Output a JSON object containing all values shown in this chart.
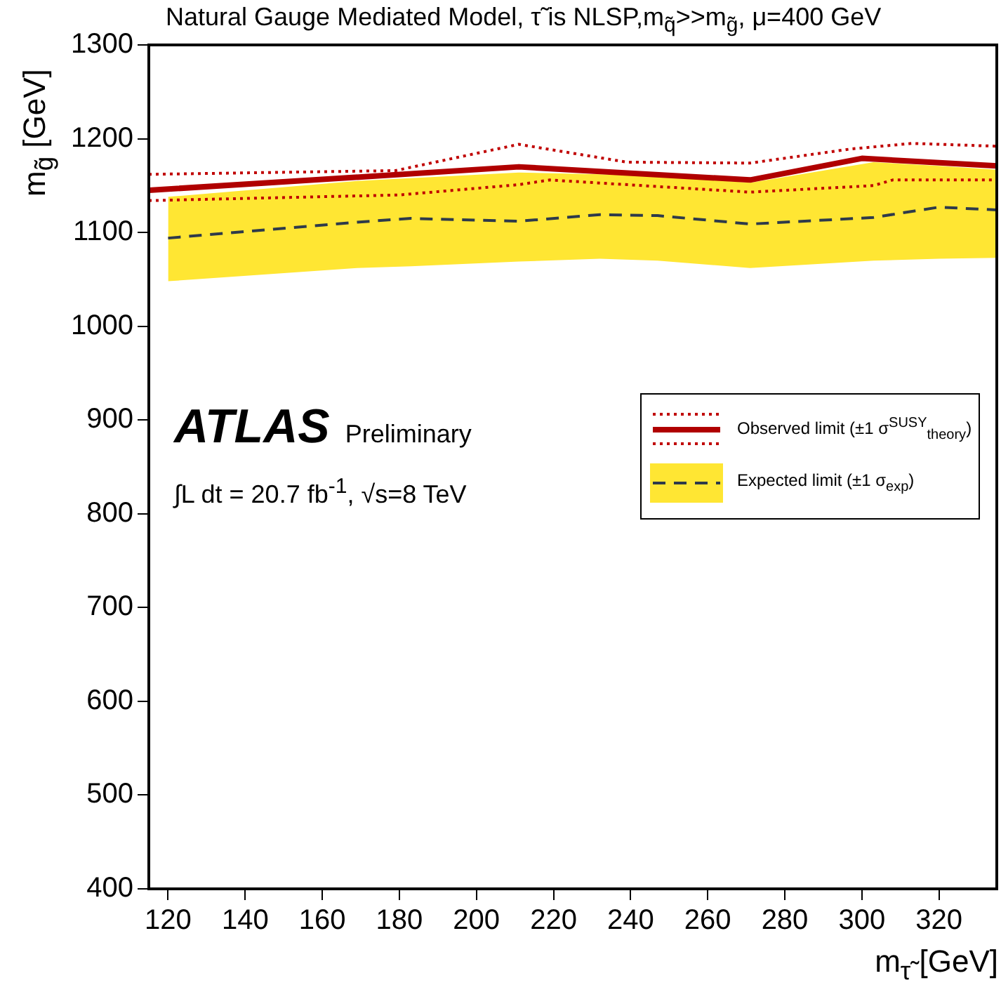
{
  "chart_data": {
    "type": "line",
    "title": "Natural Gauge Mediated Model, τ̃ is NLSP,m$_{q̃}$>>m$_{g̃}$,  μ=400 GeV",
    "xlabel": "m$_{τ̃}$ [GeV]",
    "ylabel": "m$_{g̃}$ [GeV]",
    "annotations": [
      "ATLAS Preliminary",
      "∫L dt = 20.7 fb$^{-1}$, √s=8 TeV"
    ],
    "xlim": [
      115,
      335
    ],
    "xticks": [
      120,
      140,
      160,
      180,
      200,
      220,
      240,
      260,
      280,
      300,
      320
    ],
    "ylim": [
      400,
      1300
    ],
    "yticks": [
      400,
      500,
      600,
      700,
      800,
      900,
      1000,
      1100,
      1200,
      1300
    ],
    "grid": false,
    "legend": "right",
    "marker": "none",
    "series": [
      {
        "name": "Expected limit (±1 σ$_{exp}$)",
        "color": "#2e3a4a",
        "line_style": "dashed",
        "x": [
          120,
          169,
          183,
          211,
          232,
          247,
          271,
          303,
          320,
          335
        ],
        "values": [
          1094,
          1111,
          1115,
          1112,
          1119,
          1118,
          1109,
          1116,
          1127,
          1124
        ],
        "lower": [
          1048,
          1062,
          1064,
          1069,
          1072,
          1070,
          1062,
          1070,
          1072,
          1073
        ],
        "upper": [
          1138,
          1155,
          1158,
          1164,
          1162,
          1160,
          1153,
          1175,
          1171,
          1167
        ]
      },
      {
        "name": "Observed limit (±1 σ$^{SUSY}$$_{theory}$)",
        "color": "#b00000",
        "line_style": "solid",
        "x": [
          115,
          173,
          211,
          271,
          300,
          335
        ],
        "values": [
          1145,
          1160,
          1170,
          1156,
          1179,
          1171
        ]
      },
      {
        "color": "#c00000",
        "line_style": "dotted",
        "x": [
          115,
          179,
          211,
          239,
          271,
          297,
          313,
          335
        ],
        "values": [
          1162,
          1166,
          1194,
          1175,
          1174,
          1189,
          1195,
          1192
        ]
      },
      {
        "color": "#c00000",
        "line_style": "dotted",
        "x": [
          115,
          180,
          211,
          219,
          271,
          303,
          308,
          335
        ],
        "values": [
          1134,
          1140,
          1151,
          1156,
          1143,
          1150,
          1156,
          1156
        ]
      }
    ]
  }
}
